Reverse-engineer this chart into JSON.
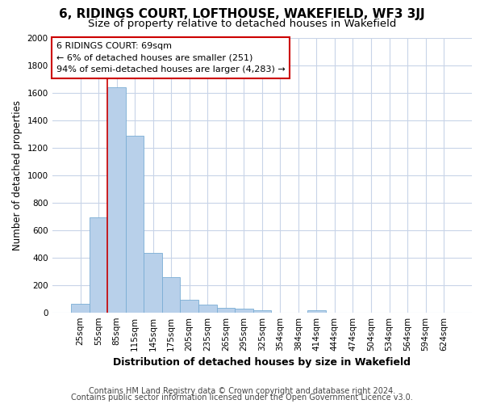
{
  "title": "6, RIDINGS COURT, LOFTHOUSE, WAKEFIELD, WF3 3JJ",
  "subtitle": "Size of property relative to detached houses in Wakefield",
  "xlabel": "Distribution of detached houses by size in Wakefield",
  "ylabel": "Number of detached properties",
  "categories": [
    "25sqm",
    "55sqm",
    "85sqm",
    "115sqm",
    "145sqm",
    "175sqm",
    "205sqm",
    "235sqm",
    "265sqm",
    "295sqm",
    "325sqm",
    "354sqm",
    "384sqm",
    "414sqm",
    "444sqm",
    "474sqm",
    "504sqm",
    "534sqm",
    "564sqm",
    "594sqm",
    "624sqm"
  ],
  "values": [
    65,
    690,
    1640,
    1285,
    435,
    255,
    90,
    55,
    35,
    30,
    15,
    0,
    0,
    15,
    0,
    0,
    0,
    0,
    0,
    0,
    0
  ],
  "bar_color": "#b8d0ea",
  "bar_edge_color": "#7aadd4",
  "annotation_text": "6 RIDINGS COURT: 69sqm\n← 6% of detached houses are smaller (251)\n94% of semi-detached houses are larger (4,283) →",
  "annotation_box_color": "#ffffff",
  "annotation_box_edge_color": "#cc0000",
  "vline_color": "#cc0000",
  "vline_x": 1.5,
  "ylim": [
    0,
    2000
  ],
  "yticks": [
    0,
    200,
    400,
    600,
    800,
    1000,
    1200,
    1400,
    1600,
    1800,
    2000
  ],
  "footer_line1": "Contains HM Land Registry data © Crown copyright and database right 2024.",
  "footer_line2": "Contains public sector information licensed under the Open Government Licence v3.0.",
  "bg_color": "#ffffff",
  "grid_color": "#c8d4e8",
  "title_fontsize": 11,
  "subtitle_fontsize": 9.5,
  "xlabel_fontsize": 9,
  "ylabel_fontsize": 8.5,
  "footer_fontsize": 7,
  "annotation_fontsize": 8,
  "tick_fontsize": 7.5
}
